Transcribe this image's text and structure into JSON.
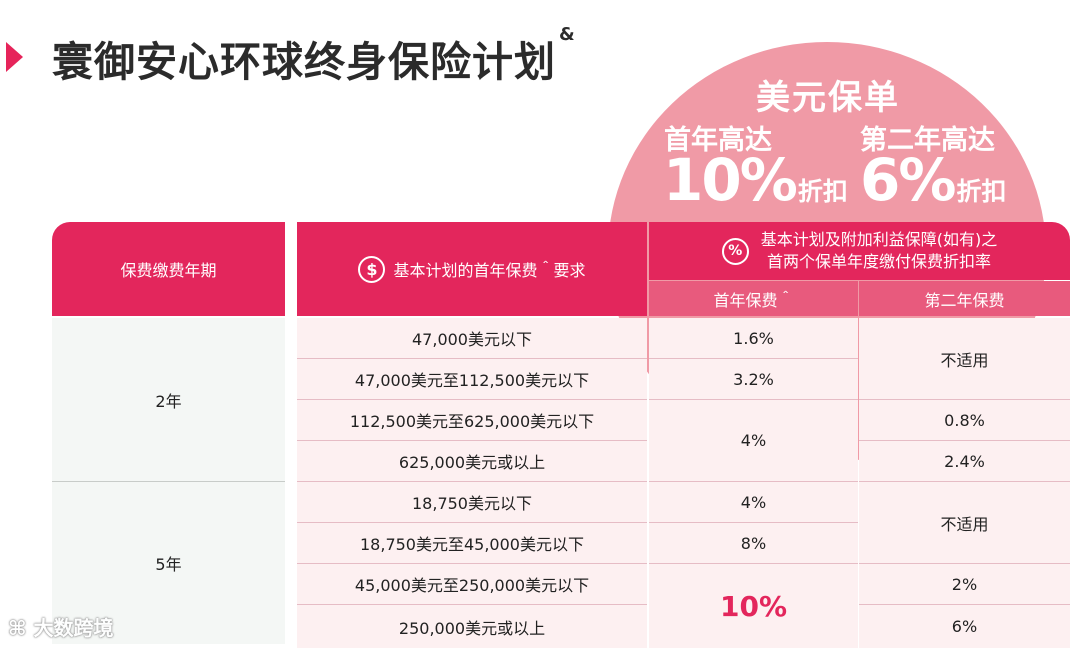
{
  "title": {
    "text": "寰御安心环球终身保险计划",
    "sup": "&"
  },
  "promo": {
    "heading": "美元保单",
    "first_label": "首年高达",
    "first_value": "10%",
    "first_suffix": "折扣",
    "second_label": "第二年高达",
    "second_value": "6%",
    "second_suffix": "折扣"
  },
  "table": {
    "header_period": "保费缴费年期",
    "header_premium_icon": "$",
    "header_premium": "基本计划的首年保费＾要求",
    "header_rate_icon": "%",
    "header_rate_line1": "基本计划及附加利益保障(如有)之",
    "header_rate_line2": "首两个保单年度缴付保费折扣率",
    "sub_first_year": "首年保费＾",
    "sub_second_year": "第二年保费",
    "groups": [
      {
        "period": "2年",
        "premiums": [
          "47,000美元以下",
          "47,000美元至112,500美元以下",
          "112,500美元至625,000美元以下",
          "625,000美元或以上"
        ],
        "first_year": [
          "1.6%",
          "3.2%",
          "4%"
        ],
        "second_year": [
          "不适用",
          "0.8%",
          "2.4%"
        ]
      },
      {
        "period": "5年",
        "premiums": [
          "18,750美元以下",
          "18,750美元至45,000美元以下",
          "45,000美元至250,000美元以下",
          "250,000美元或以上"
        ],
        "first_year": [
          "4%",
          "8%",
          "10%"
        ],
        "second_year": [
          "不适用",
          "2%",
          "6%"
        ]
      }
    ]
  },
  "watermark": "大数跨境",
  "colors": {
    "accent": "#e3265c",
    "promo": "#f09aa6",
    "row_bg": "#fdf0f1",
    "period_bg": "#f4f7f5"
  }
}
